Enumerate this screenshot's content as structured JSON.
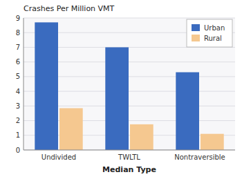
{
  "chart_data": {
    "type": "bar",
    "title": "Crashes Per Million VMT",
    "xlabel": "Median Type",
    "categories": [
      "Undivided",
      "TWLTL",
      "Nontraversible"
    ],
    "series": [
      {
        "name": "Urban",
        "color": "#3A6BBF",
        "values": [
          8.7,
          7.0,
          5.3
        ]
      },
      {
        "name": "Rural",
        "color": "#F5C890",
        "values": [
          2.85,
          1.75,
          1.1
        ]
      }
    ],
    "ylim": [
      0,
      9
    ],
    "yticks": [
      0,
      1,
      2,
      3,
      4,
      5,
      6,
      7,
      8,
      9
    ],
    "grid": true,
    "legend": "upper right"
  }
}
